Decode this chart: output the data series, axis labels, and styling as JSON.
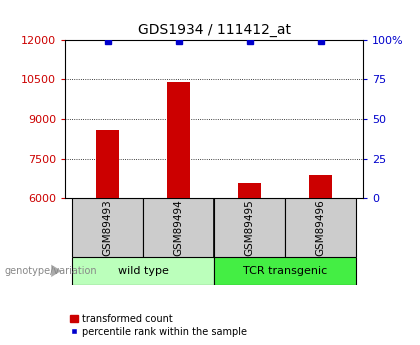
{
  "title": "GDS1934 / 111412_at",
  "samples": [
    "GSM89493",
    "GSM89494",
    "GSM89495",
    "GSM89496"
  ],
  "transformed_counts": [
    8600,
    10400,
    6600,
    6900
  ],
  "percentile_ranks": [
    99,
    99,
    99,
    99
  ],
  "ylim_left": [
    6000,
    12000
  ],
  "yticks_left": [
    6000,
    7500,
    9000,
    10500,
    12000
  ],
  "yticks_right": [
    0,
    25,
    50,
    75,
    100
  ],
  "ylim_right": [
    0,
    100
  ],
  "bar_color": "#cc0000",
  "dot_color": "#0000cc",
  "groups": [
    {
      "label": "wild type",
      "color": "#bbffbb"
    },
    {
      "label": "TCR transgenic",
      "color": "#44ee44"
    }
  ],
  "legend_bar_label": "transformed count",
  "legend_dot_label": "percentile rank within the sample",
  "genotype_label": "genotype/variation",
  "label_area_color": "#cccccc",
  "title_fontsize": 10,
  "tick_fontsize": 8,
  "sample_label_fontsize": 7.5,
  "group_label_fontsize": 8,
  "legend_fontsize": 7,
  "genotype_fontsize": 7
}
